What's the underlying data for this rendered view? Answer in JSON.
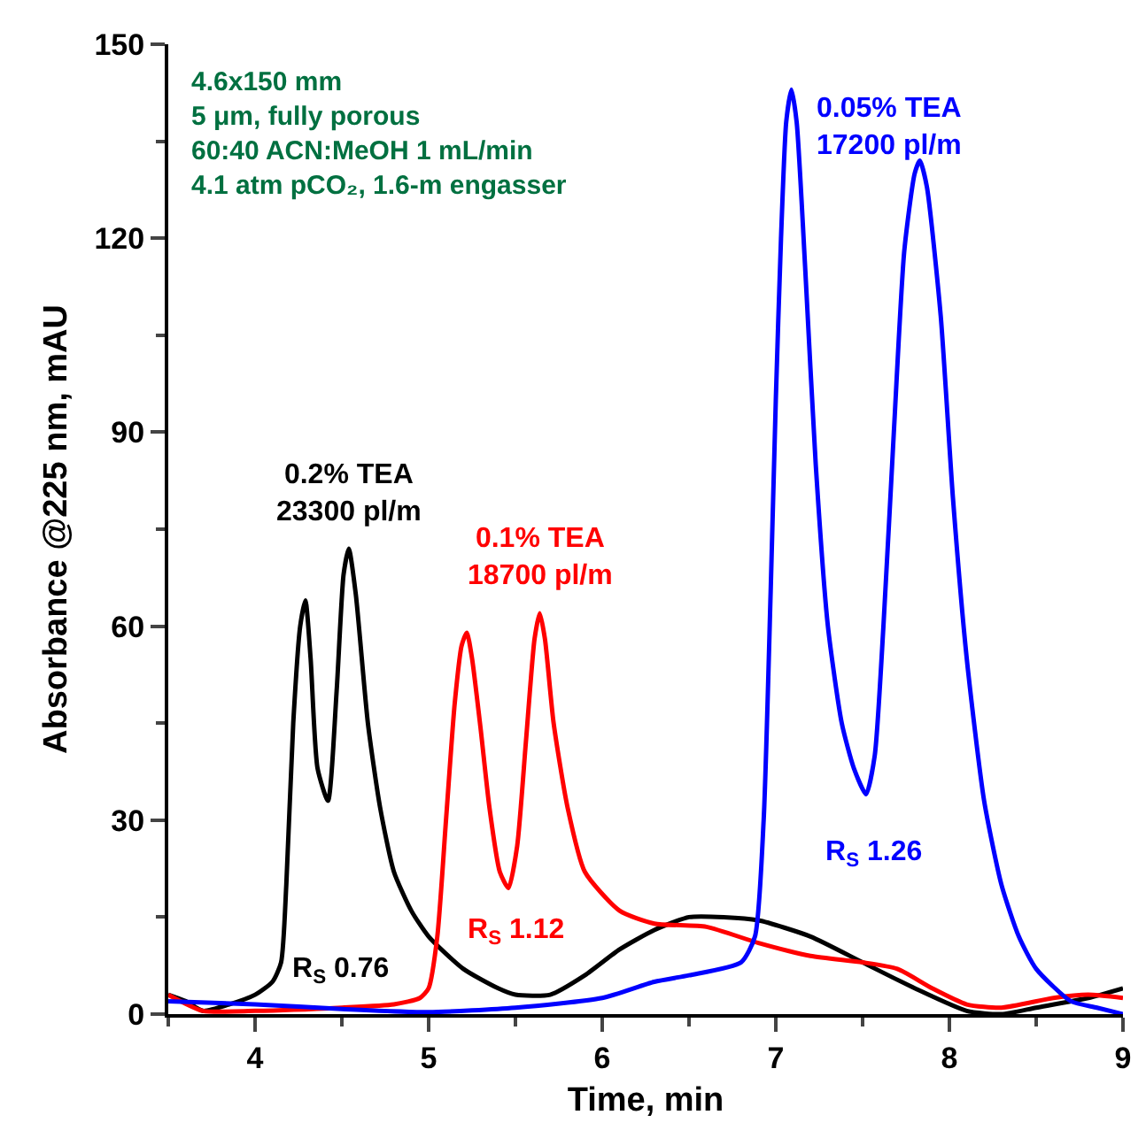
{
  "chart_data": {
    "type": "line",
    "xlabel": "Time, min",
    "ylabel": "Absorbance @225 nm, mAU",
    "xlim": [
      3.5,
      9
    ],
    "xticks": [
      4,
      5,
      6,
      7,
      8,
      9
    ],
    "ylim": [
      0,
      150
    ],
    "yticks": [
      0,
      30,
      60,
      90,
      120,
      150
    ],
    "legend": false,
    "line_style": "solid",
    "marker": "none",
    "series": [
      {
        "name": "0.2% TEA\n23300 pl/m",
        "color": "#000000",
        "x": [
          3.5,
          3.6,
          3.7,
          3.85,
          4.0,
          4.1,
          4.15,
          4.18,
          4.22,
          4.26,
          4.29,
          4.32,
          4.36,
          4.42,
          4.47,
          4.51,
          4.54,
          4.58,
          4.65,
          4.72,
          4.8,
          4.9,
          5.0,
          5.2,
          5.4,
          5.5,
          5.7,
          5.9,
          6.1,
          6.3,
          6.5,
          6.7,
          6.9,
          7.2,
          7.5,
          7.8,
          8.1,
          8.3,
          8.5,
          8.8,
          9.0
        ],
        "values": [
          3,
          2,
          0.5,
          1.5,
          3,
          5,
          8,
          20,
          45,
          60,
          64,
          55,
          38,
          33,
          50,
          68,
          72,
          65,
          45,
          32,
          22,
          16,
          12,
          7,
          4,
          3,
          3,
          6,
          10,
          13,
          15,
          15,
          14.5,
          12,
          8,
          4,
          0.5,
          0,
          1,
          2.5,
          4
        ]
      },
      {
        "name": "0.1% TEA\n18700 pl/m",
        "color": "#ff0000",
        "x": [
          3.5,
          3.7,
          4.0,
          4.5,
          4.8,
          4.95,
          5.0,
          5.05,
          5.1,
          5.15,
          5.19,
          5.22,
          5.25,
          5.3,
          5.35,
          5.41,
          5.46,
          5.51,
          5.56,
          5.61,
          5.64,
          5.67,
          5.72,
          5.8,
          5.9,
          6.1,
          6.3,
          6.6,
          6.9,
          7.2,
          7.5,
          7.7,
          7.9,
          8.1,
          8.3,
          8.6,
          8.8,
          9.0
        ],
        "values": [
          3,
          0.5,
          0.5,
          1,
          1.5,
          2.5,
          4,
          12,
          30,
          48,
          57,
          59,
          55,
          44,
          32,
          22,
          19.5,
          26,
          42,
          58,
          62,
          58,
          45,
          32,
          22,
          16,
          14,
          13.5,
          11,
          9,
          8,
          7,
          4,
          1.5,
          1,
          2.5,
          3,
          2.5
        ]
      },
      {
        "name": "0.05% TEA\n17200 pl/m",
        "color": "#0000ff",
        "x": [
          3.5,
          4.0,
          4.5,
          5.0,
          5.5,
          6.0,
          6.3,
          6.5,
          6.8,
          6.88,
          6.93,
          6.97,
          7.0,
          7.03,
          7.06,
          7.09,
          7.12,
          7.17,
          7.23,
          7.3,
          7.38,
          7.45,
          7.52,
          7.57,
          7.62,
          7.68,
          7.74,
          7.8,
          7.83,
          7.87,
          7.95,
          8.02,
          8.1,
          8.2,
          8.3,
          8.4,
          8.5,
          8.7,
          8.85,
          9.0
        ],
        "values": [
          2,
          1.5,
          0.8,
          0.3,
          1,
          2.5,
          5,
          6,
          8,
          12,
          30,
          65,
          95,
          120,
          138,
          143,
          138,
          115,
          85,
          60,
          45,
          38,
          34,
          40,
          60,
          90,
          118,
          130,
          132,
          128,
          108,
          80,
          55,
          33,
          20,
          12,
          7,
          2,
          1,
          0
        ]
      }
    ],
    "annotations": [
      "R$_{S}$ 0.76",
      "R$_{S}$ 1.12",
      "R$_{S}$ 1.26",
      "4.6x150 mm\n5 μm, fully porous\n60:40 ACN:MeOH 1 mL/min\n4.1 atm pCO₂, 1.6-m engasser"
    ]
  }
}
